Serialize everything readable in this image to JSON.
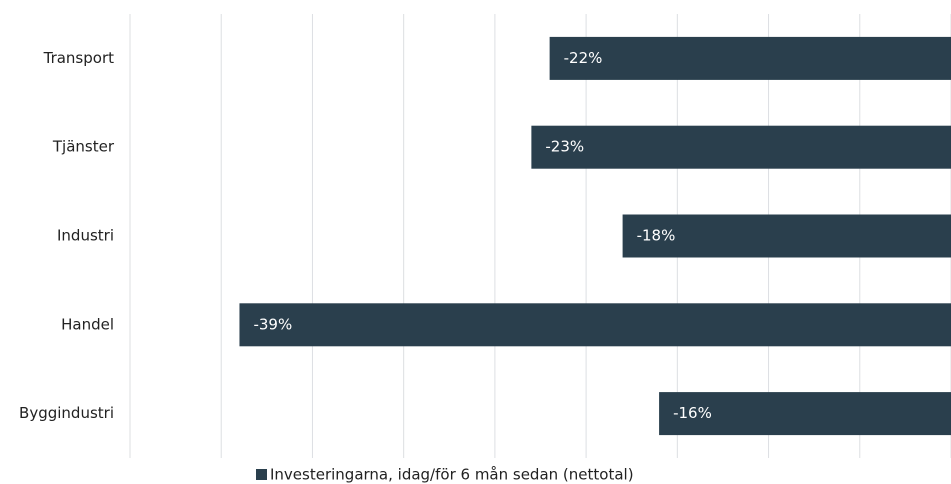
{
  "chart_data": {
    "type": "barh",
    "categories": [
      "Transport",
      "Tjänster",
      "Industri",
      "Handel",
      "Byggindustri"
    ],
    "series": [
      {
        "name": "Investeringarna, idag/för 6 mån sedan (nettotal)",
        "color": "#2a3f4d",
        "values": [
          -22,
          -23,
          -18,
          -39,
          -16
        ],
        "value_labels": [
          "-22%",
          "-23%",
          "-18%",
          "-39%",
          "-16%"
        ]
      }
    ],
    "xlim": [
      -45,
      0
    ],
    "xticks": [
      -45,
      -40,
      -35,
      -30,
      -25,
      -20,
      -15,
      -10,
      -5,
      0
    ],
    "grid": true,
    "legend": "bottom"
  }
}
